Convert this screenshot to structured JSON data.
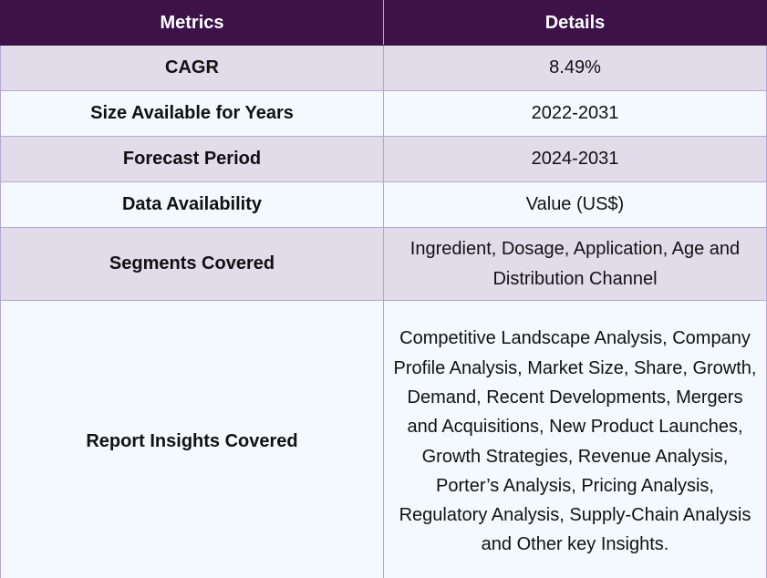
{
  "table": {
    "headers": [
      "Metrics",
      "Details"
    ],
    "rows": [
      {
        "metric": "CAGR",
        "details": "8.49%"
      },
      {
        "metric": "Size Available for Years",
        "details": "2022-2031"
      },
      {
        "metric": "Forecast Period",
        "details": "2024-2031"
      },
      {
        "metric": "Data Availability",
        "details": "Value (US$)"
      },
      {
        "metric": "Segments Covered",
        "details": "Ingredient, Dosage, Application, Age and Distribution Channel"
      },
      {
        "metric": "Report Insights Covered",
        "details": "Competitive Landscape Analysis, Company Profile Analysis, Market Size, Share, Growth, Demand, Recent Developments, Mergers and Acquisitions, New Product Launches, Growth Strategies, Revenue Analysis, Porter’s Analysis, Pricing Analysis, Regulatory Analysis, Supply-Chain Analysis and Other key Insights."
      }
    ]
  },
  "colors": {
    "header_bg": "#3c1249",
    "row_odd_bg": "#e2dcea",
    "row_even_bg": "#f4f9fd",
    "border": "#b3a6d0"
  }
}
